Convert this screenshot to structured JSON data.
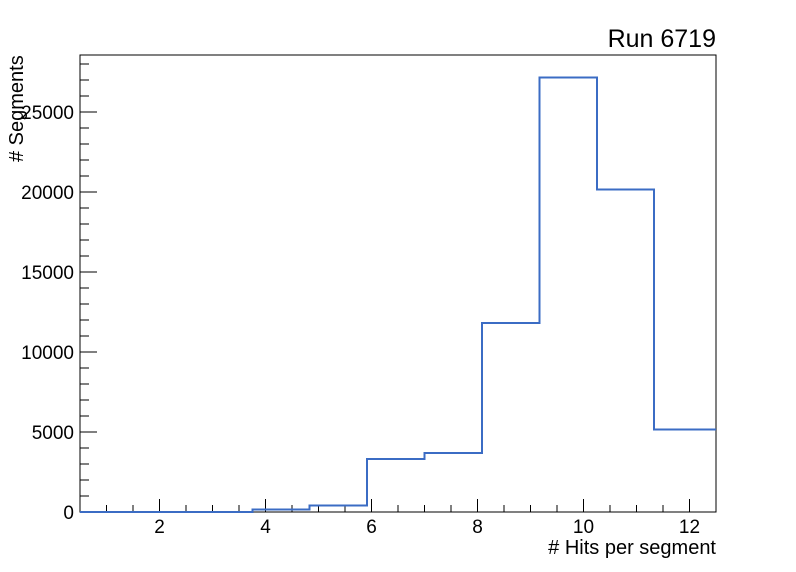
{
  "title": "Run 6719",
  "chart_data": {
    "type": "histogram-step",
    "title": "Run 6719",
    "xlabel": "# Hits per segment",
    "ylabel": "# Segments",
    "bin_edges": [
      0.5,
      1.5833,
      2.6667,
      3.75,
      4.8333,
      5.9167,
      7.0,
      8.0833,
      9.1667,
      10.25,
      11.3333,
      12.4167,
      13.5
    ],
    "values": [
      0,
      0,
      0,
      150,
      420,
      3300,
      3700,
      11800,
      27150,
      20150,
      5150,
      5150
    ],
    "xlim": [
      0.5,
      12.5
    ],
    "ylim": [
      0,
      28560
    ],
    "x_major_ticks": [
      2,
      4,
      6,
      8,
      10,
      12
    ],
    "x_minor_step": 0.5,
    "y_major_ticks": [
      0,
      5000,
      10000,
      15000,
      20000,
      25000
    ],
    "y_minor_step": 1000,
    "grid": "off",
    "legend": "none",
    "line_color": "#3b6cc4",
    "frame_color": "#000000",
    "background_color": "#ffffff"
  }
}
